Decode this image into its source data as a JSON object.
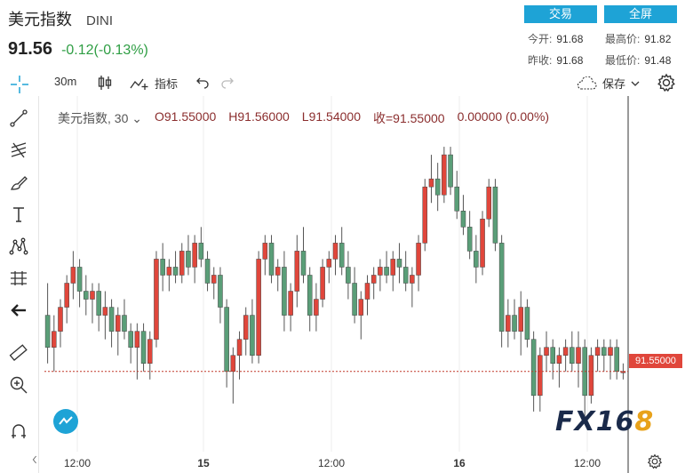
{
  "header": {
    "title": "美元指数",
    "code": "DINI",
    "price": "91.56",
    "change": "-0.12(-0.13%)",
    "buttons": {
      "trade": "交易",
      "fullscreen": "全屏"
    },
    "stats": {
      "open_label": "今开:",
      "open": "91.68",
      "high_label": "最高价:",
      "high": "91.82",
      "prev_label": "昨收:",
      "prev": "91.68",
      "low_label": "最低价:",
      "low": "91.48"
    }
  },
  "toolbar": {
    "interval": "30m",
    "indicators": "指标",
    "save": "保存"
  },
  "legend": {
    "symbol": "美元指数, 30",
    "open": "O91.55000",
    "high": "H91.56000",
    "low": "L91.54000",
    "close": "收=91.55000",
    "change": "0.00000 (0.00%)"
  },
  "price_tag": "91.55000",
  "x_axis": {
    "ticks": [
      "12:00",
      "15",
      "12:00",
      "16",
      "12:00"
    ]
  },
  "logo": {
    "main": "FX16",
    "accent": "8"
  },
  "colors": {
    "up": "#e0463b",
    "down": "#5a9e78",
    "accent": "#1ea3d6",
    "price_line": "#c0392b"
  },
  "chart_data": {
    "type": "candlestick",
    "ylim": [
      91.45,
      91.86
    ],
    "current_price": 91.55,
    "candles": [
      [
        91.62,
        91.66,
        91.56,
        91.58
      ],
      [
        91.58,
        91.62,
        91.55,
        91.6
      ],
      [
        91.6,
        91.64,
        91.58,
        91.63
      ],
      [
        91.63,
        91.67,
        91.61,
        91.66
      ],
      [
        91.66,
        91.7,
        91.64,
        91.68
      ],
      [
        91.68,
        91.69,
        91.63,
        91.65
      ],
      [
        91.65,
        91.67,
        91.62,
        91.64
      ],
      [
        91.64,
        91.66,
        91.61,
        91.65
      ],
      [
        91.65,
        91.66,
        91.6,
        91.62
      ],
      [
        91.62,
        91.65,
        91.59,
        91.63
      ],
      [
        91.63,
        91.64,
        91.58,
        91.6
      ],
      [
        91.6,
        91.63,
        91.57,
        91.62
      ],
      [
        91.62,
        91.64,
        91.59,
        91.6
      ],
      [
        91.6,
        91.61,
        91.56,
        91.58
      ],
      [
        91.58,
        91.61,
        91.54,
        91.6
      ],
      [
        91.6,
        91.61,
        91.55,
        91.56
      ],
      [
        91.56,
        91.6,
        91.54,
        91.59
      ],
      [
        91.59,
        91.7,
        91.58,
        91.69
      ],
      [
        91.69,
        91.71,
        91.65,
        91.67
      ],
      [
        91.67,
        91.69,
        91.65,
        91.68
      ],
      [
        91.68,
        91.7,
        91.66,
        91.67
      ],
      [
        91.67,
        91.71,
        91.66,
        91.7
      ],
      [
        91.7,
        91.72,
        91.67,
        91.68
      ],
      [
        91.68,
        91.72,
        91.66,
        91.71
      ],
      [
        91.71,
        91.73,
        91.68,
        91.69
      ],
      [
        91.69,
        91.7,
        91.65,
        91.66
      ],
      [
        91.66,
        91.68,
        91.64,
        91.67
      ],
      [
        91.67,
        91.68,
        91.61,
        91.63
      ],
      [
        91.63,
        91.64,
        91.53,
        91.55
      ],
      [
        91.55,
        91.58,
        91.51,
        91.57
      ],
      [
        91.57,
        91.6,
        91.54,
        91.59
      ],
      [
        91.59,
        91.63,
        91.57,
        91.62
      ],
      [
        91.62,
        91.64,
        91.56,
        91.57
      ],
      [
        91.57,
        91.7,
        91.56,
        91.69
      ],
      [
        91.69,
        91.72,
        91.67,
        91.71
      ],
      [
        91.71,
        91.72,
        91.66,
        91.67
      ],
      [
        91.67,
        91.69,
        91.65,
        91.68
      ],
      [
        91.68,
        91.7,
        91.6,
        91.62
      ],
      [
        91.62,
        91.66,
        91.6,
        91.65
      ],
      [
        91.65,
        91.72,
        91.63,
        91.7
      ],
      [
        91.7,
        91.73,
        91.66,
        91.67
      ],
      [
        91.67,
        91.68,
        91.6,
        91.62
      ],
      [
        91.62,
        91.66,
        91.6,
        91.64
      ],
      [
        91.64,
        91.69,
        91.63,
        91.68
      ],
      [
        91.68,
        91.7,
        91.66,
        91.69
      ],
      [
        91.69,
        91.72,
        91.67,
        91.71
      ],
      [
        91.71,
        91.73,
        91.67,
        91.68
      ],
      [
        91.68,
        91.7,
        91.64,
        91.66
      ],
      [
        91.66,
        91.68,
        91.61,
        91.62
      ],
      [
        91.62,
        91.65,
        91.59,
        91.64
      ],
      [
        91.64,
        91.67,
        91.62,
        91.66
      ],
      [
        91.66,
        91.68,
        91.64,
        91.67
      ],
      [
        91.67,
        91.69,
        91.65,
        91.68
      ],
      [
        91.68,
        91.7,
        91.66,
        91.67
      ],
      [
        91.67,
        91.7,
        91.65,
        91.69
      ],
      [
        91.69,
        91.71,
        91.66,
        91.68
      ],
      [
        91.68,
        91.7,
        91.65,
        91.66
      ],
      [
        91.66,
        91.68,
        91.63,
        91.67
      ],
      [
        91.67,
        91.72,
        91.65,
        91.71
      ],
      [
        91.71,
        91.79,
        91.7,
        91.78
      ],
      [
        91.78,
        91.82,
        91.76,
        91.79
      ],
      [
        91.79,
        91.81,
        91.75,
        91.77
      ],
      [
        91.77,
        91.83,
        91.76,
        91.82
      ],
      [
        91.82,
        91.83,
        91.77,
        91.78
      ],
      [
        91.78,
        91.8,
        91.74,
        91.75
      ],
      [
        91.75,
        91.77,
        91.72,
        91.73
      ],
      [
        91.73,
        91.75,
        91.69,
        91.7
      ],
      [
        91.7,
        91.72,
        91.66,
        91.68
      ],
      [
        91.68,
        91.75,
        91.67,
        91.74
      ],
      [
        91.74,
        91.79,
        91.73,
        91.78
      ],
      [
        91.78,
        91.79,
        91.7,
        91.71
      ],
      [
        91.71,
        91.72,
        91.58,
        91.6
      ],
      [
        91.6,
        91.64,
        91.58,
        91.62
      ],
      [
        91.62,
        91.64,
        91.59,
        91.6
      ],
      [
        91.6,
        91.65,
        91.57,
        91.63
      ],
      [
        91.63,
        91.64,
        91.58,
        91.59
      ],
      [
        91.59,
        91.6,
        91.5,
        91.52
      ],
      [
        91.52,
        91.58,
        91.5,
        91.57
      ],
      [
        91.57,
        91.6,
        91.55,
        91.58
      ],
      [
        91.58,
        91.59,
        91.54,
        91.56
      ],
      [
        91.56,
        91.58,
        91.53,
        91.57
      ],
      [
        91.57,
        91.59,
        91.55,
        91.58
      ],
      [
        91.58,
        91.6,
        91.55,
        91.56
      ],
      [
        91.56,
        91.6,
        91.53,
        91.58
      ],
      [
        91.58,
        91.59,
        91.49,
        91.52
      ],
      [
        91.52,
        91.58,
        91.51,
        91.57
      ],
      [
        91.57,
        91.59,
        91.55,
        91.58
      ],
      [
        91.58,
        91.59,
        91.55,
        91.57
      ],
      [
        91.57,
        91.59,
        91.54,
        91.58
      ],
      [
        91.58,
        91.59,
        91.54,
        91.55
      ],
      [
        91.55,
        91.56,
        91.54,
        91.55
      ]
    ]
  }
}
